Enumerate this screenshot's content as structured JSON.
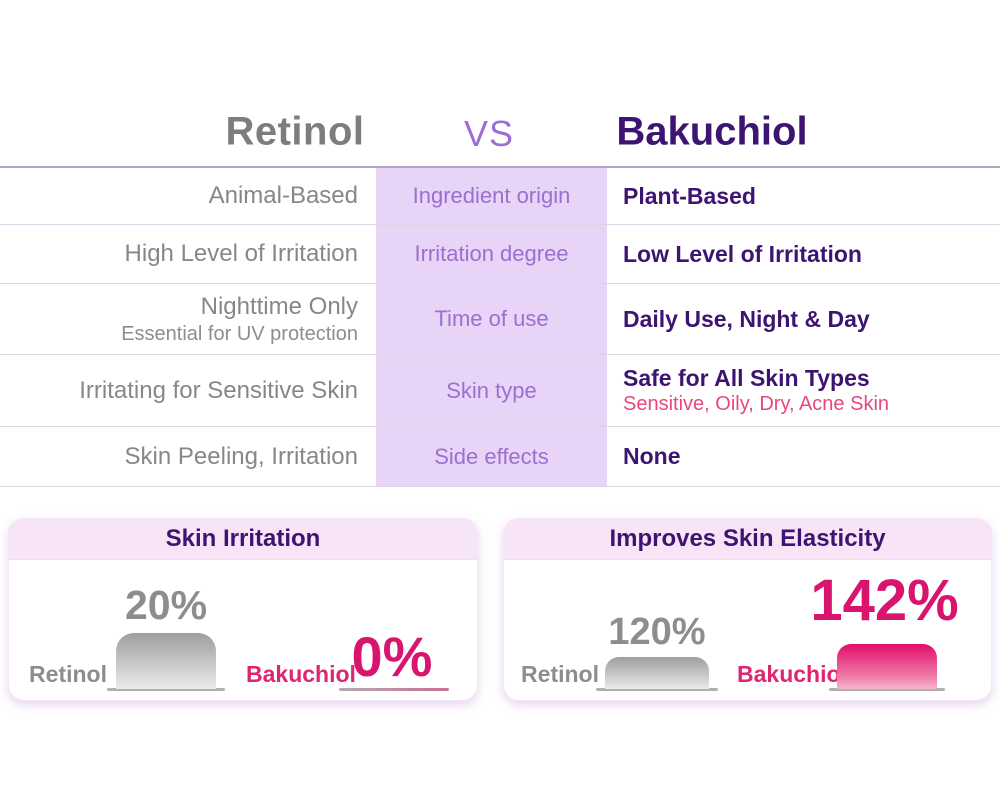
{
  "title": {
    "left": "Retinol",
    "vs": "VS",
    "right": "Bakuchiol"
  },
  "comparison_table": {
    "rows": [
      {
        "retinol": "Animal-Based",
        "attribute": "Ingredient origin",
        "bakuchiol": "Plant-Based"
      },
      {
        "retinol": "High Level of Irritation",
        "attribute": "Irritation degree",
        "bakuchiol": "Low Level of Irritation"
      },
      {
        "retinol": "Nighttime Only",
        "retinol_note": "Essential for UV protection",
        "attribute": "Time of use",
        "bakuchiol": "Daily Use, Night & Day"
      },
      {
        "retinol": "Irritating for Sensitive Skin",
        "attribute": "Skin type",
        "bakuchiol": "Safe for All Skin Types",
        "bakuchiol_note": "Sensitive, Oily, Dry, Acne Skin"
      },
      {
        "retinol": "Skin Peeling, Irritation",
        "attribute": "Side effects",
        "bakuchiol": "None"
      }
    ]
  },
  "chart_data": [
    {
      "type": "bar",
      "title": "Skin Irritation",
      "categories": [
        "Retinol",
        "Bakuchiol"
      ],
      "values": [
        20,
        0
      ],
      "value_labels": [
        "20%",
        "0%"
      ],
      "series_colors": [
        "#9e9e9e",
        "#d8146f"
      ],
      "legend_position": "none",
      "grid": false
    },
    {
      "type": "bar",
      "title": "Improves Skin Elasticity",
      "categories": [
        "Retinol",
        "Bakuchiol"
      ],
      "values": [
        120,
        142
      ],
      "value_labels": [
        "120%",
        "142%"
      ],
      "series_colors": [
        "#9e9e9e",
        "#d8146f"
      ],
      "legend_position": "none",
      "grid": false
    }
  ],
  "colors": {
    "retinol_gray": "#7d7d7d",
    "bakuchiol_purple": "#3d1472",
    "vs_purple": "#9d6fd4",
    "attribute_text": "#9a6fd0",
    "attribute_column_bg": "#e8d4f7",
    "pink_accent": "#d8146f",
    "pink_note": "#e8477c",
    "card_header_bg": "#f8e4f7"
  }
}
